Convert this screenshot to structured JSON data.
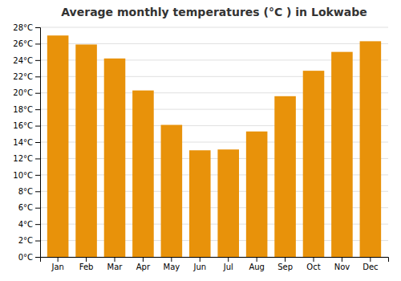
{
  "chart_data": {
    "type": "bar",
    "title": "Average monthly temperatures (°C ) in Lokwabe",
    "categories": [
      "Jan",
      "Feb",
      "Mar",
      "Apr",
      "May",
      "Jun",
      "Jul",
      "Aug",
      "Sep",
      "Oct",
      "Nov",
      "Dec"
    ],
    "values": [
      27.0,
      25.9,
      24.2,
      20.3,
      16.1,
      13.0,
      13.1,
      15.3,
      19.6,
      22.7,
      25.0,
      26.3
    ],
    "color": "#E8920A",
    "ylim": [
      0,
      28
    ],
    "yticks": [
      {
        "value": 0,
        "label": "0°C"
      },
      {
        "value": 2,
        "label": "2°C"
      },
      {
        "value": 4,
        "label": "4°C"
      },
      {
        "value": 6,
        "label": "6°C"
      },
      {
        "value": 8,
        "label": "8°C"
      },
      {
        "value": 10,
        "label": "10°C"
      },
      {
        "value": 12,
        "label": "12°C"
      },
      {
        "value": 14,
        "label": "14°C"
      },
      {
        "value": 16,
        "label": "16°C"
      },
      {
        "value": 18,
        "label": "18°C"
      },
      {
        "value": 20,
        "label": "20°C"
      },
      {
        "value": 22,
        "label": "22°C"
      },
      {
        "value": 24,
        "label": "24°C"
      },
      {
        "value": 26,
        "label": "26°C"
      },
      {
        "value": 28,
        "label": "28°C"
      }
    ],
    "grid": true
  }
}
